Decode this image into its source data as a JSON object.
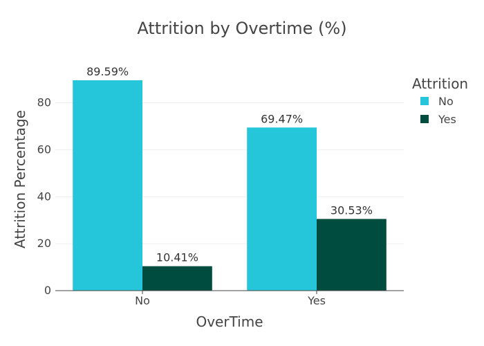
{
  "chart_data": {
    "type": "bar",
    "title": "Attrition by Overtime (%)",
    "xlabel": "OverTime",
    "ylabel": "Attrition Percentage",
    "categories": [
      "No",
      "Yes"
    ],
    "series": [
      {
        "name": "No",
        "values": [
          89.59,
          69.47
        ],
        "labels": [
          "89.59%",
          "69.47%"
        ],
        "color": "#26c6da"
      },
      {
        "name": "Yes",
        "values": [
          10.41,
          30.53
        ],
        "labels": [
          "10.41%",
          "30.53%"
        ],
        "color": "#004d40"
      }
    ],
    "yticks": [
      0,
      20,
      40,
      60,
      80
    ],
    "ylim": [
      0,
      94.3
    ],
    "grid": true,
    "legend": {
      "title": "Attrition",
      "position": "top-right"
    }
  }
}
